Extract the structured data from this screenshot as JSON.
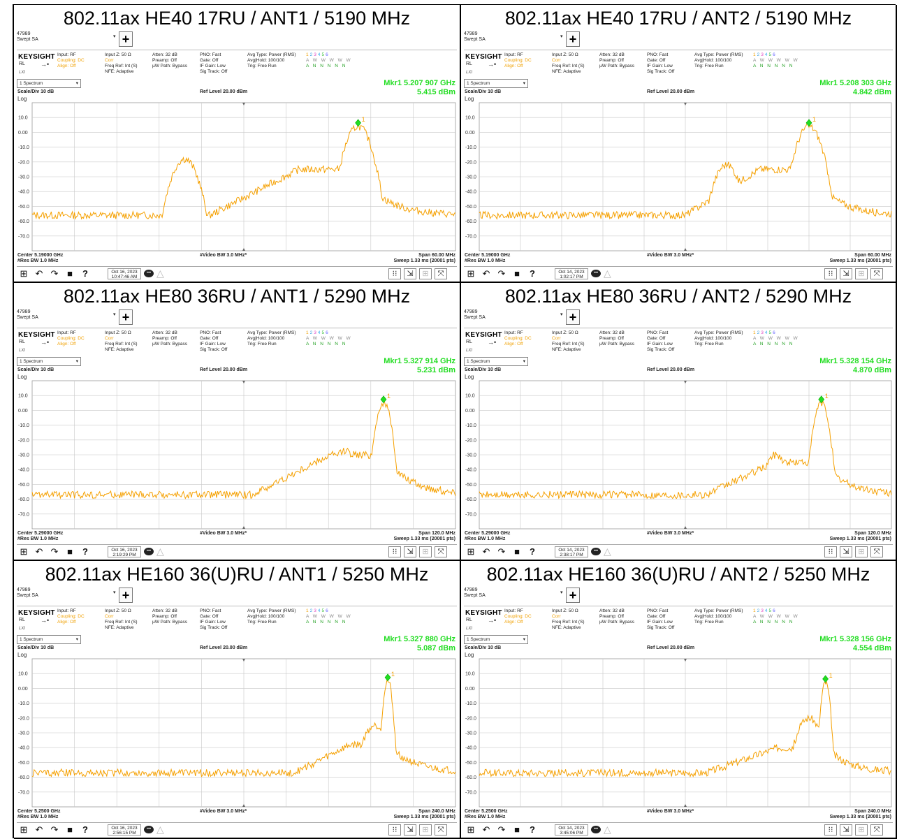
{
  "panels": [
    {
      "title": "802.11ax HE40 17RU / ANT1 / 5190 MHz",
      "marker_freq": "Mkr1  5.207 907 GHz",
      "marker_level": "5.415 dBm",
      "center": "Center 5.19000 GHz",
      "span": "Span 60.00 MHz",
      "date": "Oct 16, 2023",
      "time": "10:47:46 AM",
      "res_bw": "#Res BW 1.0 MHz",
      "trace": {
        "base": -56,
        "rise_start": 0.42,
        "plateau": -25,
        "peak_x": 0.77,
        "peak": 4,
        "peak_w": 0.035,
        "tail": -57,
        "bump_x": 0.36,
        "bump_h": -18
      }
    },
    {
      "title": "802.11ax HE40 17RU / ANT2 / 5190 MHz",
      "marker_freq": "Mkr1  5.208 303 GHz",
      "marker_level": "4.842 dBm",
      "center": "Center 5.19000 GHz",
      "span": "Span 60.00 MHz",
      "date": "Oct 14, 2023",
      "time": "1:02:17 PM",
      "res_bw": "#Res BW 1.0 MHz",
      "trace": {
        "base": -56,
        "rise_start": 0.5,
        "plateau": -25,
        "peak_x": 0.8,
        "peak": 4,
        "peak_w": 0.035,
        "tail": -57,
        "bump_x": 0.6,
        "bump_h": -22
      }
    },
    {
      "title": "802.11ax HE80 36RU / ANT1 / 5290 MHz",
      "marker_freq": "Mkr1  5.327 914 GHz",
      "marker_level": "5.231 dBm",
      "center": "Center 5.29000 GHz",
      "span": "Span 120.0 MHz",
      "date": "Oct 16, 2023",
      "time": "2:19:29 PM",
      "res_bw": "#Res BW 1.0 MHz",
      "trace": {
        "base": -57,
        "rise_start": 0.52,
        "plateau": -30,
        "peak_x": 0.83,
        "peak": 5,
        "peak_w": 0.02,
        "tail": -58,
        "bump_x": 0.74,
        "bump_h": -27
      }
    },
    {
      "title": "802.11ax HE80 36RU / ANT2 / 5290 MHz",
      "marker_freq": "Mkr1  5.328 154 GHz",
      "marker_level": "4.870 dBm",
      "center": "Center 5.29000 GHz",
      "span": "Span 120.0 MHz",
      "date": "Oct 14, 2023",
      "time": "2:38:17 PM",
      "res_bw": "#Res BW 1.0 MHz",
      "trace": {
        "base": -57,
        "rise_start": 0.55,
        "plateau": -35,
        "peak_x": 0.83,
        "peak": 5,
        "peak_w": 0.02,
        "tail": -58,
        "bump_x": 0.72,
        "bump_h": -30
      }
    },
    {
      "title": "802.11ax HE160 36(U)RU / ANT1 / 5250 MHz",
      "marker_freq": "Mkr1  5.327 880 GHz",
      "marker_level": "5.087 dBm",
      "center": "Center 5.2500 GHz",
      "span": "Span 240.0 MHz",
      "date": "Oct 16, 2023",
      "time": "2:56:15 PM",
      "res_bw": "#Res BW 1.0 MHz",
      "trace": {
        "base": -57,
        "rise_start": 0.62,
        "plateau": -38,
        "peak_x": 0.84,
        "peak": 5,
        "peak_w": 0.012,
        "tail": -57,
        "bump_x": 0.81,
        "bump_h": -25
      }
    },
    {
      "title": "802.11ax HE160 36(U)RU / ANT2 / 5250 MHz",
      "marker_freq": "Mkr1  5.328 156 GHz",
      "marker_level": "4.554 dBm",
      "center": "Center 5.2500 GHz",
      "span": "Span 240.0 MHz",
      "date": "Oct 14, 2023",
      "time": "3:45:06 PM",
      "res_bw": "#Res BW 1.0 MHz",
      "trace": {
        "base": -57,
        "rise_start": 0.55,
        "plateau": -40,
        "peak_x": 0.84,
        "peak": 4,
        "peak_w": 0.012,
        "tail": -57,
        "bump_x": 0.8,
        "bump_h": -20
      }
    }
  ],
  "common": {
    "instrument_id": "47989",
    "mode": "Swept SA",
    "brand": "KEYSIGHT",
    "rl": "RL",
    "lxi": "LXI",
    "input": "Input: RF",
    "coupling": "Coupling: DC",
    "align": "Align: Off",
    "input_z": "Input Z: 50 Ω",
    "corr": "Corr",
    "freq_ref": "Freq Ref: Int (S)",
    "nfe": "NFE: Adaptive",
    "atten": "Atten: 32 dB",
    "preamp": "Preamp: Off",
    "uw_path": "µW Path: Bypass",
    "pno": "PNO: Fast",
    "gate": "Gate: Off",
    "if_gain": "IF Gain: Low",
    "sig_track": "Sig Track: Off",
    "avg_type": "Avg Type: Power (RMS)",
    "avg_hold": "Avg|Hold: 100/100",
    "trig": "Trig: Free Run",
    "trace_nums": [
      "1",
      "2",
      "3",
      "4",
      "5",
      "6"
    ],
    "trace_w": "A W W W W W",
    "trace_n": "A N N N N N",
    "spectrum": "1 Spectrum",
    "scale_div": "Scale/Div 10 dB",
    "ref_level": "Ref Level 20.00 dBm",
    "log": "Log",
    "video_bw": "#Video BW 3.0 MHz*",
    "sweep": "Sweep 1.33 ms (20001 pts)",
    "y_labels": [
      "10.0",
      "0.00",
      "-10.0",
      "-20.0",
      "-30.0",
      "-40.0",
      "-50.0",
      "-60.0",
      "-70.0"
    ],
    "marker_label": "1",
    "trace_color": "#f5a000",
    "marker_color": "#22dd22",
    "icons": [
      "windows-icon",
      "undo-icon",
      "redo-icon",
      "file-icon",
      "help-icon",
      "chat-icon",
      "warning-icon",
      "keypad-icon",
      "cursor-icon",
      "layout-icon",
      "fullscreen-icon"
    ]
  }
}
